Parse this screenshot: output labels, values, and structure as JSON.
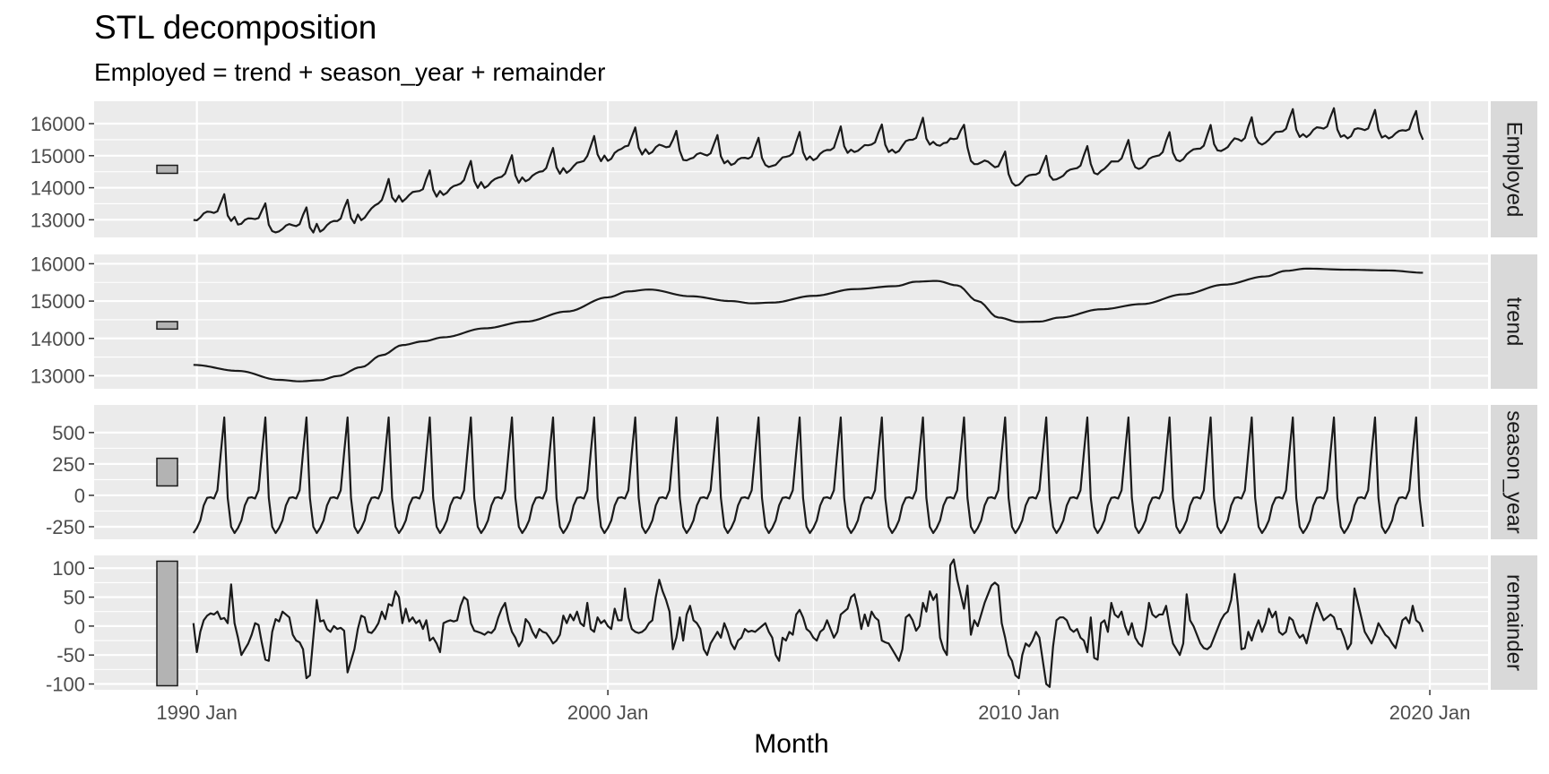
{
  "chart_data": {
    "type": "line",
    "title": "STL decomposition",
    "subtitle": "Employed = trend + season_year + remainder",
    "xlabel": "Month",
    "x_ticks": [
      "1990 Jan",
      "2000 Jan",
      "2010 Jan",
      "2020 Jan"
    ],
    "xlim": [
      "1987-07",
      "2021-06"
    ],
    "grid": true,
    "panels": [
      {
        "name": "Employed",
        "ylim": [
          12450,
          16700
        ],
        "y_ticks": [
          13000,
          14000,
          15000,
          16000
        ],
        "y_tick_labels": [
          "13000",
          "14000",
          "15000",
          "16000"
        ],
        "scale_bar_range": [
          14450,
          14700
        ]
      },
      {
        "name": "trend",
        "ylim": [
          12650,
          16250
        ],
        "y_ticks": [
          13000,
          14000,
          15000,
          16000
        ],
        "y_tick_labels": [
          "13000",
          "14000",
          "15000",
          "16000"
        ],
        "scale_bar_range": [
          14250,
          14450
        ]
      },
      {
        "name": "season_year",
        "ylim": [
          -350,
          720
        ],
        "y_ticks": [
          -250,
          0,
          250,
          500
        ],
        "y_tick_labels": [
          "-250",
          "0",
          "250",
          "500"
        ],
        "scale_bar_range": [
          75,
          295
        ]
      },
      {
        "name": "remainder",
        "ylim": [
          -110,
          122
        ],
        "y_ticks": [
          -100,
          -50,
          0,
          50,
          100
        ],
        "y_tick_labels": [
          "-100",
          "-50",
          "0",
          "50",
          "100"
        ],
        "scale_bar_range": [
          -103,
          112
        ]
      }
    ],
    "x_start": "1989-12",
    "x_end": "2019-11",
    "trend_anchors": [
      [
        "1989-12",
        13290
      ],
      [
        "1991-01",
        13130
      ],
      [
        "1992-01",
        12890
      ],
      [
        "1992-07",
        12850
      ],
      [
        "1993-01",
        12880
      ],
      [
        "1993-06",
        12990
      ],
      [
        "1994-01",
        13230
      ],
      [
        "1994-07",
        13550
      ],
      [
        "1995-01",
        13820
      ],
      [
        "1995-07",
        13920
      ],
      [
        "1996-01",
        14030
      ],
      [
        "1997-01",
        14270
      ],
      [
        "1998-01",
        14450
      ],
      [
        "1999-01",
        14720
      ],
      [
        "2000-01",
        15100
      ],
      [
        "2000-07",
        15260
      ],
      [
        "2001-01",
        15310
      ],
      [
        "2002-01",
        15130
      ],
      [
        "2003-01",
        15000
      ],
      [
        "2003-07",
        14940
      ],
      [
        "2004-01",
        14960
      ],
      [
        "2005-01",
        15140
      ],
      [
        "2006-01",
        15320
      ],
      [
        "2007-01",
        15400
      ],
      [
        "2007-07",
        15520
      ],
      [
        "2008-01",
        15540
      ],
      [
        "2008-07",
        15420
      ],
      [
        "2009-01",
        15000
      ],
      [
        "2009-07",
        14560
      ],
      [
        "2010-01",
        14440
      ],
      [
        "2010-07",
        14450
      ],
      [
        "2011-01",
        14560
      ],
      [
        "2012-01",
        14780
      ],
      [
        "2013-01",
        14920
      ],
      [
        "2014-01",
        15180
      ],
      [
        "2015-01",
        15440
      ],
      [
        "2016-01",
        15660
      ],
      [
        "2016-07",
        15810
      ],
      [
        "2017-01",
        15870
      ],
      [
        "2018-01",
        15840
      ],
      [
        "2019-01",
        15820
      ],
      [
        "2019-11",
        15760
      ]
    ],
    "seasonal_pattern": [
      -260,
      -200,
      -80,
      -20,
      -15,
      -25,
      40,
      340,
      620,
      -20,
      -250,
      -300
    ],
    "remainder_values": [
      5,
      -45,
      -10,
      10,
      18,
      22,
      20,
      25,
      12,
      14,
      5,
      72,
      5,
      -20,
      -50,
      -40,
      -30,
      -15,
      5,
      2,
      -30,
      -58,
      -60,
      -10,
      12,
      8,
      25,
      20,
      15,
      -15,
      -25,
      -28,
      -40,
      -90,
      -85,
      -20,
      45,
      8,
      10,
      -5,
      -10,
      0,
      -5,
      -3,
      -8,
      -80,
      -60,
      -40,
      -5,
      18,
      15,
      -10,
      -12,
      -5,
      5,
      25,
      12,
      38,
      35,
      60,
      50,
      5,
      30,
      8,
      15,
      5,
      10,
      -5,
      10,
      -25,
      -20,
      -30,
      -45,
      5,
      8,
      10,
      8,
      10,
      35,
      50,
      45,
      5,
      -8,
      -10,
      -12,
      -15,
      -10,
      -12,
      -5,
      15,
      30,
      40,
      10,
      -10,
      -20,
      -35,
      -25,
      12,
      5,
      -10,
      -20,
      -5,
      -10,
      -12,
      -20,
      -30,
      -25,
      -15,
      18,
      5,
      20,
      10,
      25,
      5,
      0,
      40,
      -5,
      -10,
      15,
      5,
      10,
      0,
      -5,
      30,
      10,
      10,
      65,
      15,
      -5,
      -10,
      -12,
      -10,
      -5,
      5,
      10,
      50,
      80,
      60,
      45,
      25,
      -40,
      -20,
      15,
      -25,
      20,
      35,
      10,
      5,
      -5,
      -40,
      -50,
      -30,
      -20,
      -10,
      -20,
      5,
      -10,
      -30,
      -40,
      -25,
      -20,
      -5,
      -10,
      -8,
      -10,
      -5,
      0,
      5,
      -10,
      -20,
      -50,
      -60,
      -20,
      -25,
      -10,
      -15,
      20,
      28,
      15,
      -5,
      -10,
      -20,
      -25,
      -10,
      -5,
      10,
      -5,
      -20,
      -10,
      20,
      25,
      30,
      50,
      55,
      30,
      -5,
      20,
      0,
      25,
      15,
      10,
      -25,
      -28,
      -30,
      -40,
      -50,
      -60,
      -40,
      15,
      20,
      10,
      -8,
      0,
      40,
      25,
      60,
      45,
      55,
      -20,
      -40,
      -50,
      105,
      115,
      80,
      55,
      30,
      70,
      -15,
      10,
      0,
      20,
      40,
      55,
      70,
      75,
      70,
      5,
      -20,
      -50,
      -60,
      -85,
      -90,
      -50,
      -30,
      -35,
      -25,
      -10,
      -20,
      -60,
      -100,
      -105,
      -35,
      10,
      15,
      15,
      10,
      -5,
      -10,
      -5,
      -20,
      -25,
      -45,
      15,
      -55,
      -58,
      5,
      10,
      -10,
      40,
      20,
      15,
      25,
      0,
      -15,
      5,
      -20,
      -30,
      -35,
      -5,
      40,
      20,
      15,
      20,
      20,
      35,
      0,
      -30,
      -40,
      -50,
      -30,
      55,
      10,
      0,
      -15,
      -30,
      -38,
      -40,
      -35,
      -20,
      -5,
      10,
      20,
      25,
      45,
      90,
      35,
      -40,
      -38,
      -10,
      -25,
      -5,
      10,
      -10,
      5,
      30,
      15,
      25,
      -10,
      -15,
      -10,
      15,
      10,
      -10,
      -20,
      -15,
      -30,
      -5,
      20,
      40,
      25,
      10,
      15,
      20,
      15,
      -5,
      -5,
      -20,
      -40,
      -30,
      65,
      40,
      15,
      -10,
      -20,
      -30,
      -15,
      5,
      -5,
      -15,
      -20,
      -30,
      -38,
      -15,
      10,
      15,
      5,
      35,
      10,
      5,
      -10,
      -20,
      -38,
      45,
      -30,
      20,
      35,
      25,
      5,
      -15,
      0,
      5,
      -12
    ],
    "employed_extra_peaks": [
      [
        "1990-12",
        250
      ],
      [
        "1992-12",
        250
      ],
      [
        "1993-12",
        250
      ],
      [
        "1994-12",
        200
      ],
      [
        "1995-12",
        220
      ],
      [
        "1996-12",
        220
      ],
      [
        "1997-12",
        200
      ],
      [
        "1998-12",
        180
      ],
      [
        "1999-12",
        200
      ],
      [
        "2000-12",
        200
      ],
      [
        "2002-12",
        150
      ],
      [
        "2004-12",
        150
      ],
      [
        "2005-12",
        120
      ],
      [
        "2006-12",
        130
      ],
      [
        "2007-12",
        150
      ],
      [
        "2016-12",
        120
      ],
      [
        "2017-12",
        120
      ],
      [
        "2018-12",
        120
      ]
    ]
  }
}
